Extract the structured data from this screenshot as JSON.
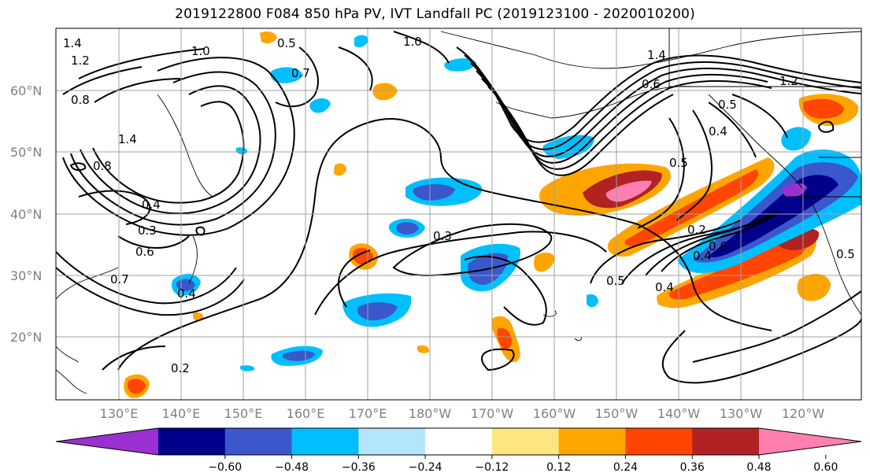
{
  "title": "2019122800 F084 850 hPa PV, IVT Landfall PC (2019123100 - 2020010200)",
  "lat_labels": [
    "60°N",
    "50°N",
    "40°N",
    "30°N",
    "20°N"
  ],
  "lon_labels": [
    "130°E",
    "140°E",
    "150°E",
    "160°E",
    "170°E",
    "180°W",
    "170°W",
    "160°W",
    "150°W",
    "140°W",
    "130°W",
    "120°W"
  ],
  "contour_labels": [
    "1.4",
    "1.2",
    "0.8",
    "1.0",
    "0.5",
    "0.7",
    "1.4",
    "0.8",
    "0.4",
    "0.3",
    "0.6",
    "0.7",
    "0.4",
    "0.2",
    "1.0",
    "1.4",
    "0.6",
    "0.5",
    "0.4",
    "0.3",
    "0.5",
    "0.2",
    "0.4",
    "0.6",
    "0.5",
    "0.4",
    "0.5",
    "1.2"
  ],
  "colorbar": {
    "ticks": [
      "−0.60",
      "−0.48",
      "−0.36",
      "−0.24",
      "−0.12",
      "0.12",
      "0.24",
      "0.36",
      "0.48",
      "0.60"
    ],
    "colors": [
      "#9b30d0",
      "#00008b",
      "#3a57cc",
      "#00bfff",
      "#b3e5fc",
      "#ffffff",
      "#ffe680",
      "#ffa500",
      "#ff4500",
      "#b22222",
      "#ff7fb0"
    ]
  },
  "colors": {
    "grid": "#a0a0a0",
    "contour": "#000000",
    "axis_label": "#808080"
  }
}
